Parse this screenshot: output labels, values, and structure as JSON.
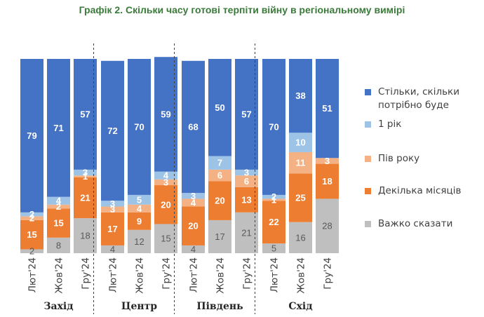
{
  "chart_data": {
    "type": "bar",
    "stacked": true,
    "title": "Графік 2. Скільки часу готові терпіти війну в регіональному вимірі",
    "groups": [
      {
        "name": "Захід",
        "categories": [
          "Лют'24",
          "Жов'24",
          "Гру'24"
        ]
      },
      {
        "name": "Центр",
        "categories": [
          "Лют'24",
          "Жов'24",
          "Гру'24"
        ]
      },
      {
        "name": "Південь",
        "categories": [
          "Лют'24",
          "Жов'24",
          "Гру'24"
        ]
      },
      {
        "name": "Схід",
        "categories": [
          "Лют'24",
          "Жов'24",
          "Гру'24"
        ]
      }
    ],
    "series": [
      {
        "name": "Важко сказати",
        "color": "#bfbfbf",
        "label_color": "#595959",
        "values": [
          2,
          8,
          18,
          4,
          12,
          15,
          4,
          17,
          21,
          5,
          16,
          28
        ]
      },
      {
        "name": "Декілька місяців",
        "color": "#ed7d31",
        "label_color": "#ffffff",
        "values": [
          15,
          15,
          21,
          17,
          9,
          20,
          20,
          20,
          13,
          22,
          25,
          18
        ]
      },
      {
        "name": "Пів року",
        "color": "#f4b183",
        "label_color": "#ffffff",
        "values": [
          2,
          2,
          1,
          3,
          4,
          3,
          4,
          6,
          6,
          1,
          11,
          3
        ]
      },
      {
        "name": "1 рік",
        "color": "#9dc3e6",
        "label_color": "#ffffff",
        "values": [
          2,
          4,
          3,
          3,
          5,
          4,
          3,
          7,
          3,
          2,
          10,
          0
        ]
      },
      {
        "name": "Стільки, скільки потрібно буде",
        "color": "#4472c4",
        "label_color": "#ffffff",
        "values": [
          79,
          71,
          57,
          72,
          70,
          59,
          68,
          50,
          57,
          70,
          38,
          51
        ]
      }
    ],
    "ylim": [
      0,
      100
    ],
    "grid": false,
    "legend_position": "right"
  },
  "legend_items": [
    {
      "label": "Стільки, скільки потрібно буде",
      "color": "#4472c4"
    },
    {
      "label": "1 рік",
      "color": "#9dc3e6"
    },
    {
      "label": "Пів року",
      "color": "#f4b183"
    },
    {
      "label": "Декілька місяців",
      "color": "#ed7d31"
    },
    {
      "label": "Важко сказати",
      "color": "#bfbfbf"
    }
  ]
}
